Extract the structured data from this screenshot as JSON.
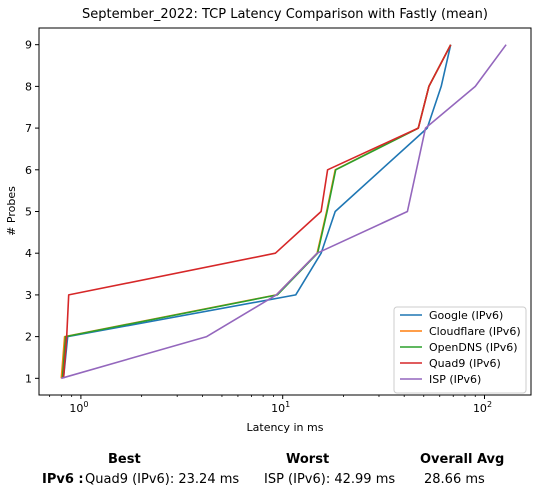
{
  "chart_data": {
    "type": "line",
    "title": "September_2022: TCP Latency Comparison with Fastly (mean)",
    "xlabel": "Latency in ms",
    "ylabel": "# Probes",
    "xscale": "log",
    "xlim": [
      0.62,
      170
    ],
    "ylim": [
      0.6,
      9.4
    ],
    "x_ticks": [
      {
        "value": 1,
        "base": "10",
        "exp": "0"
      },
      {
        "value": 10,
        "base": "10",
        "exp": "1"
      },
      {
        "value": 100,
        "base": "10",
        "exp": "2"
      }
    ],
    "y_ticks": [
      {
        "value": 1,
        "label": "1"
      },
      {
        "value": 2,
        "label": "2"
      },
      {
        "value": 3,
        "label": "3"
      },
      {
        "value": 4,
        "label": "4"
      },
      {
        "value": 5,
        "label": "5"
      },
      {
        "value": 6,
        "label": "6"
      },
      {
        "value": 7,
        "label": "7"
      },
      {
        "value": 8,
        "label": "8"
      },
      {
        "value": 9,
        "label": "9"
      }
    ],
    "grid": false,
    "legend_position": "bottom-right",
    "series": [
      {
        "name": "Google (IPv6)",
        "color": "#1f77b4",
        "x": [
          0.82,
          0.86,
          11.6,
          15.5,
          18.2,
          52,
          61,
          68
        ],
        "y": [
          1,
          2,
          3,
          4,
          5,
          7,
          8,
          9
        ]
      },
      {
        "name": "Cloudflare (IPv6)",
        "color": "#ff7f0e",
        "x": [
          0.8,
          0.83,
          9.3,
          14.8,
          16.5,
          18.2,
          47,
          53,
          68
        ],
        "y": [
          1,
          2,
          3,
          4,
          5,
          6,
          7,
          8,
          9
        ]
      },
      {
        "name": "OpenDNS (IPv6)",
        "color": "#2ca02c",
        "x": [
          0.81,
          0.84,
          9.4,
          14.9,
          16.6,
          18.3,
          47,
          53,
          68
        ],
        "y": [
          1,
          2,
          3,
          4,
          5,
          6,
          7,
          8,
          9
        ]
      },
      {
        "name": "Quad9 (IPv6)",
        "color": "#d62728",
        "x": [
          0.82,
          0.85,
          0.87,
          9.2,
          15.5,
          16.7,
          47,
          53,
          68
        ],
        "y": [
          1,
          2,
          3,
          4,
          5,
          6,
          7,
          8,
          9
        ]
      },
      {
        "name": "ISP (IPv6)",
        "color": "#9467bd",
        "x": [
          0.8,
          4.2,
          9.3,
          14.8,
          41.5,
          51,
          90,
          128
        ],
        "y": [
          1,
          2,
          3,
          4,
          5,
          7,
          8,
          9
        ]
      }
    ]
  },
  "summary": {
    "best_header": "Best",
    "worst_header": "Worst",
    "avg_header": "Overall Avg",
    "row_label": "IPv6 :",
    "best_value": "Quad9 (IPv6): 23.24 ms",
    "worst_value": "ISP (IPv6): 42.99 ms",
    "avg_value": "28.66 ms"
  }
}
